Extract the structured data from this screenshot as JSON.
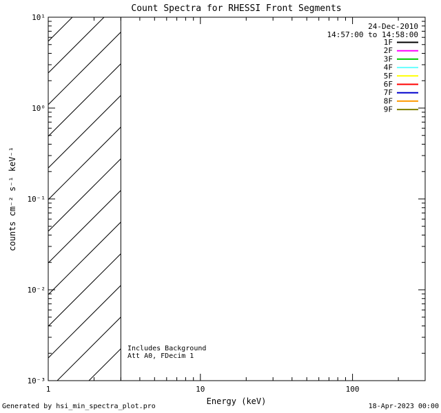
{
  "chart_data": {
    "type": "line",
    "title": "Count Spectra for RHESSI Front Segments",
    "xlabel": "Energy (keV)",
    "ylabel": "counts cm^-2 s^-1 keV^-1",
    "ylabel_display": "counts cm⁻² s⁻¹ keV⁻¹",
    "xscale": "log",
    "yscale": "log",
    "xlim": [
      1,
      300
    ],
    "ylim": [
      0.001,
      10
    ],
    "xticks": [
      1,
      10,
      100
    ],
    "xtick_labels": [
      "1",
      "10",
      "100"
    ],
    "yticks": [
      0.001,
      0.01,
      0.1,
      1,
      10
    ],
    "ytick_labels": [
      "10⁻³",
      "10⁻²",
      "10⁻¹",
      "10⁰",
      "10¹"
    ],
    "grid": false,
    "series": [],
    "hatched_region": {
      "x_start": 1,
      "x_end": 3,
      "y_start": 0.001,
      "y_end": 10,
      "style": "diagonal-hatch"
    },
    "annotations": [
      "Includes Background",
      "Att A0, FDecim 1"
    ],
    "legend_position": "top-right"
  },
  "legend": {
    "date": "24-Dec-2010",
    "time_range": "14:57:00 to 14:58:00",
    "entries": [
      {
        "label": "1F",
        "color": "#000000"
      },
      {
        "label": "2F",
        "color": "#ff00ff"
      },
      {
        "label": "3F",
        "color": "#00cc00"
      },
      {
        "label": "4F",
        "color": "#66ffff"
      },
      {
        "label": "5F",
        "color": "#ffff00"
      },
      {
        "label": "6F",
        "color": "#ff0000"
      },
      {
        "label": "7F",
        "color": "#0000cc"
      },
      {
        "label": "8F",
        "color": "#ff9900"
      },
      {
        "label": "9F",
        "color": "#808000"
      }
    ]
  },
  "footer": {
    "generated_by": "Generated by hsi_min_spectra_plot.pro",
    "datetime": "18-Apr-2023 00:00"
  }
}
